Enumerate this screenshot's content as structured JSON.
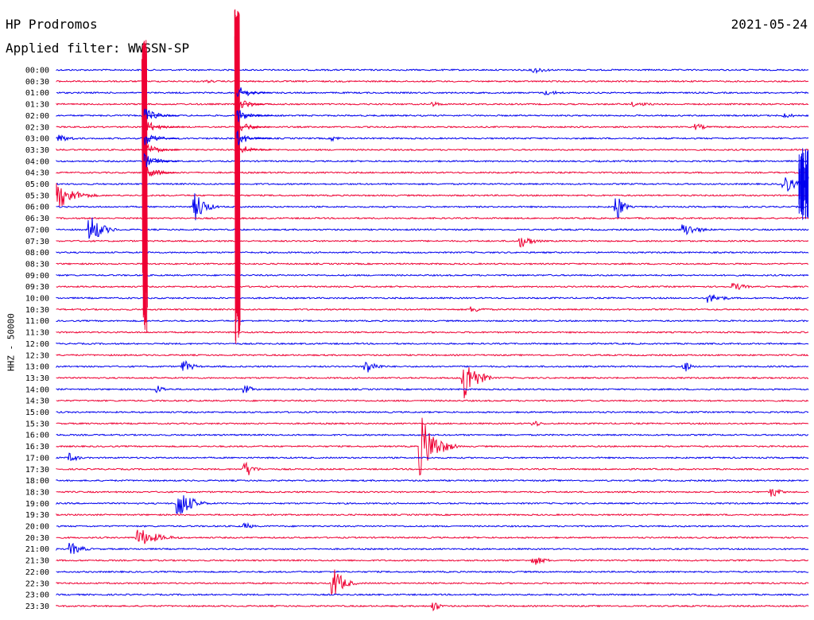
{
  "header": {
    "station": "HP Prodromos",
    "date": "2021-05-24",
    "filter": "Applied filter: WWSSN-SP",
    "channel": "HHZ - 50000"
  },
  "colors": {
    "blue": "#0000ee",
    "red": "#ee0033"
  },
  "chart_data": {
    "type": "line",
    "title": "HP Prodromos",
    "subtitle": "Applied filter: WWSSN-SP",
    "ylabel": "HHZ - 50000",
    "row_labels": [
      "00:00",
      "00:30",
      "01:00",
      "01:30",
      "02:00",
      "02:30",
      "03:00",
      "03:30",
      "04:00",
      "04:30",
      "05:00",
      "05:30",
      "06:00",
      "06:30",
      "07:00",
      "07:30",
      "08:00",
      "08:30",
      "09:00",
      "09:30",
      "10:00",
      "10:30",
      "11:00",
      "11:30",
      "12:00",
      "12:30",
      "13:00",
      "13:30",
      "14:00",
      "14:30",
      "15:00",
      "15:30",
      "16:00",
      "16:30",
      "17:00",
      "17:30",
      "18:00",
      "18:30",
      "19:00",
      "19:30",
      "20:00",
      "20:30",
      "21:00",
      "21:30",
      "22:00",
      "22:30",
      "23:00",
      "23:30"
    ],
    "row_colors": [
      "blue",
      "red"
    ],
    "events": [
      {
        "row": 0,
        "x_min": 19,
        "amp": 4,
        "up": 1,
        "down": 1,
        "dur": 1.5
      },
      {
        "row": 1,
        "x_min": 6,
        "amp": 2,
        "up": 1,
        "down": 1,
        "dur": 1
      },
      {
        "row": 2,
        "x_min": 19.5,
        "amp": 3,
        "up": 1,
        "down": 1,
        "dur": 2
      },
      {
        "row": 3,
        "x_min": 15,
        "amp": 3,
        "up": 1,
        "down": 1,
        "dur": 1
      },
      {
        "row": 3,
        "x_min": 23,
        "amp": 3,
        "up": 1,
        "down": 1,
        "dur": 2
      },
      {
        "row": 4,
        "x_min": 29,
        "amp": 3,
        "up": 1,
        "down": 1,
        "dur": 1.5
      },
      {
        "row": 5,
        "x_min": 25.5,
        "amp": 4,
        "up": 1,
        "down": 1,
        "dur": 1
      },
      {
        "row": 6,
        "x_min": 0,
        "amp": 5,
        "up": 1,
        "down": 1,
        "dur": 1.5
      },
      {
        "row": 6,
        "x_min": 11,
        "amp": 3,
        "up": 1,
        "down": 1,
        "dur": 1
      },
      {
        "row": 10,
        "x_min": 29,
        "amp": 12,
        "up": 1,
        "down": 1,
        "dur": 1
      },
      {
        "row": 10,
        "x_min": 30,
        "amp": 22,
        "up": 1,
        "down": 1,
        "dur": 1
      },
      {
        "row": 11,
        "x_min": 0,
        "amp": 16,
        "up": 1,
        "down": 1,
        "dur": 1.8
      },
      {
        "row": 12,
        "x_min": 5.5,
        "amp": 18,
        "up": 1,
        "down": 1,
        "dur": 1
      },
      {
        "row": 12,
        "x_min": 22.3,
        "amp": 18,
        "up": 1,
        "down": 1,
        "dur": 0.6
      },
      {
        "row": 14,
        "x_min": 1.3,
        "amp": 18,
        "up": 1,
        "down": 1,
        "dur": 1.2
      },
      {
        "row": 14,
        "x_min": 25,
        "amp": 8,
        "up": 1,
        "down": 1,
        "dur": 1.5
      },
      {
        "row": 15,
        "x_min": 18.5,
        "amp": 8,
        "up": 1,
        "down": 1,
        "dur": 1.2
      },
      {
        "row": 20,
        "x_min": 26,
        "amp": 6,
        "up": 1,
        "down": 1,
        "dur": 1.5
      },
      {
        "row": 19,
        "x_min": 27,
        "amp": 5,
        "up": 1,
        "down": 1,
        "dur": 1.2
      },
      {
        "row": 21,
        "x_min": 16.5,
        "amp": 4,
        "up": 1,
        "down": 1,
        "dur": 1.5
      },
      {
        "row": 26,
        "x_min": 5,
        "amp": 8,
        "up": 1,
        "down": 1,
        "dur": 1
      },
      {
        "row": 26,
        "x_min": 12.3,
        "amp": 10,
        "up": 1,
        "down": 1,
        "dur": 1
      },
      {
        "row": 26,
        "x_min": 25,
        "amp": 7,
        "up": 1,
        "down": 1,
        "dur": 0.6
      },
      {
        "row": 27,
        "x_min": 16.2,
        "amp": 30,
        "up": 1,
        "down": 1,
        "dur": 1.2
      },
      {
        "row": 28,
        "x_min": 4,
        "amp": 5,
        "up": 1,
        "down": 1,
        "dur": 0.8
      },
      {
        "row": 28,
        "x_min": 7.5,
        "amp": 5,
        "up": 1,
        "down": 1,
        "dur": 0.8
      },
      {
        "row": 31,
        "x_min": 19,
        "amp": 4,
        "up": 1,
        "down": 1,
        "dur": 0.8
      },
      {
        "row": 33,
        "x_min": 14.5,
        "amp": 36,
        "up": 1,
        "down": 1,
        "dur": 1.5
      },
      {
        "row": 34,
        "x_min": 0.5,
        "amp": 6,
        "up": 1,
        "down": 1,
        "dur": 0.8
      },
      {
        "row": 35,
        "x_min": 7.5,
        "amp": 10,
        "up": 1,
        "down": 1,
        "dur": 0.8
      },
      {
        "row": 37,
        "x_min": 28.5,
        "amp": 7,
        "up": 1,
        "down": 1,
        "dur": 0.8
      },
      {
        "row": 38,
        "x_min": 4.8,
        "amp": 20,
        "up": 1,
        "down": 1,
        "dur": 1.3
      },
      {
        "row": 40,
        "x_min": 7.5,
        "amp": 4,
        "up": 1,
        "down": 1,
        "dur": 0.8
      },
      {
        "row": 41,
        "x_min": 3.2,
        "amp": 12,
        "up": 1,
        "down": 1,
        "dur": 2
      },
      {
        "row": 42,
        "x_min": 0.5,
        "amp": 8,
        "up": 1,
        "down": 1,
        "dur": 1.2
      },
      {
        "row": 43,
        "x_min": 19,
        "amp": 6,
        "up": 1,
        "down": 1,
        "dur": 1.2
      },
      {
        "row": 45,
        "x_min": 11,
        "amp": 20,
        "up": 1,
        "down": 1,
        "dur": 1
      },
      {
        "row": 47,
        "x_min": 15,
        "amp": 7,
        "up": 1,
        "down": 1,
        "dur": 0.6
      }
    ],
    "large_events": [
      {
        "start_row": 4,
        "x_min": 3.5,
        "amp_up": 95,
        "amp_down": 15,
        "end_row": 23,
        "dur": 2.0
      },
      {
        "start_row": 2,
        "x_min": 7.2,
        "amp_up": 105,
        "amp_down": 15,
        "end_row": 24,
        "dur": 1.5
      }
    ],
    "last_event": {
      "row": 10,
      "x_min": 29.8,
      "amp": 45
    }
  }
}
